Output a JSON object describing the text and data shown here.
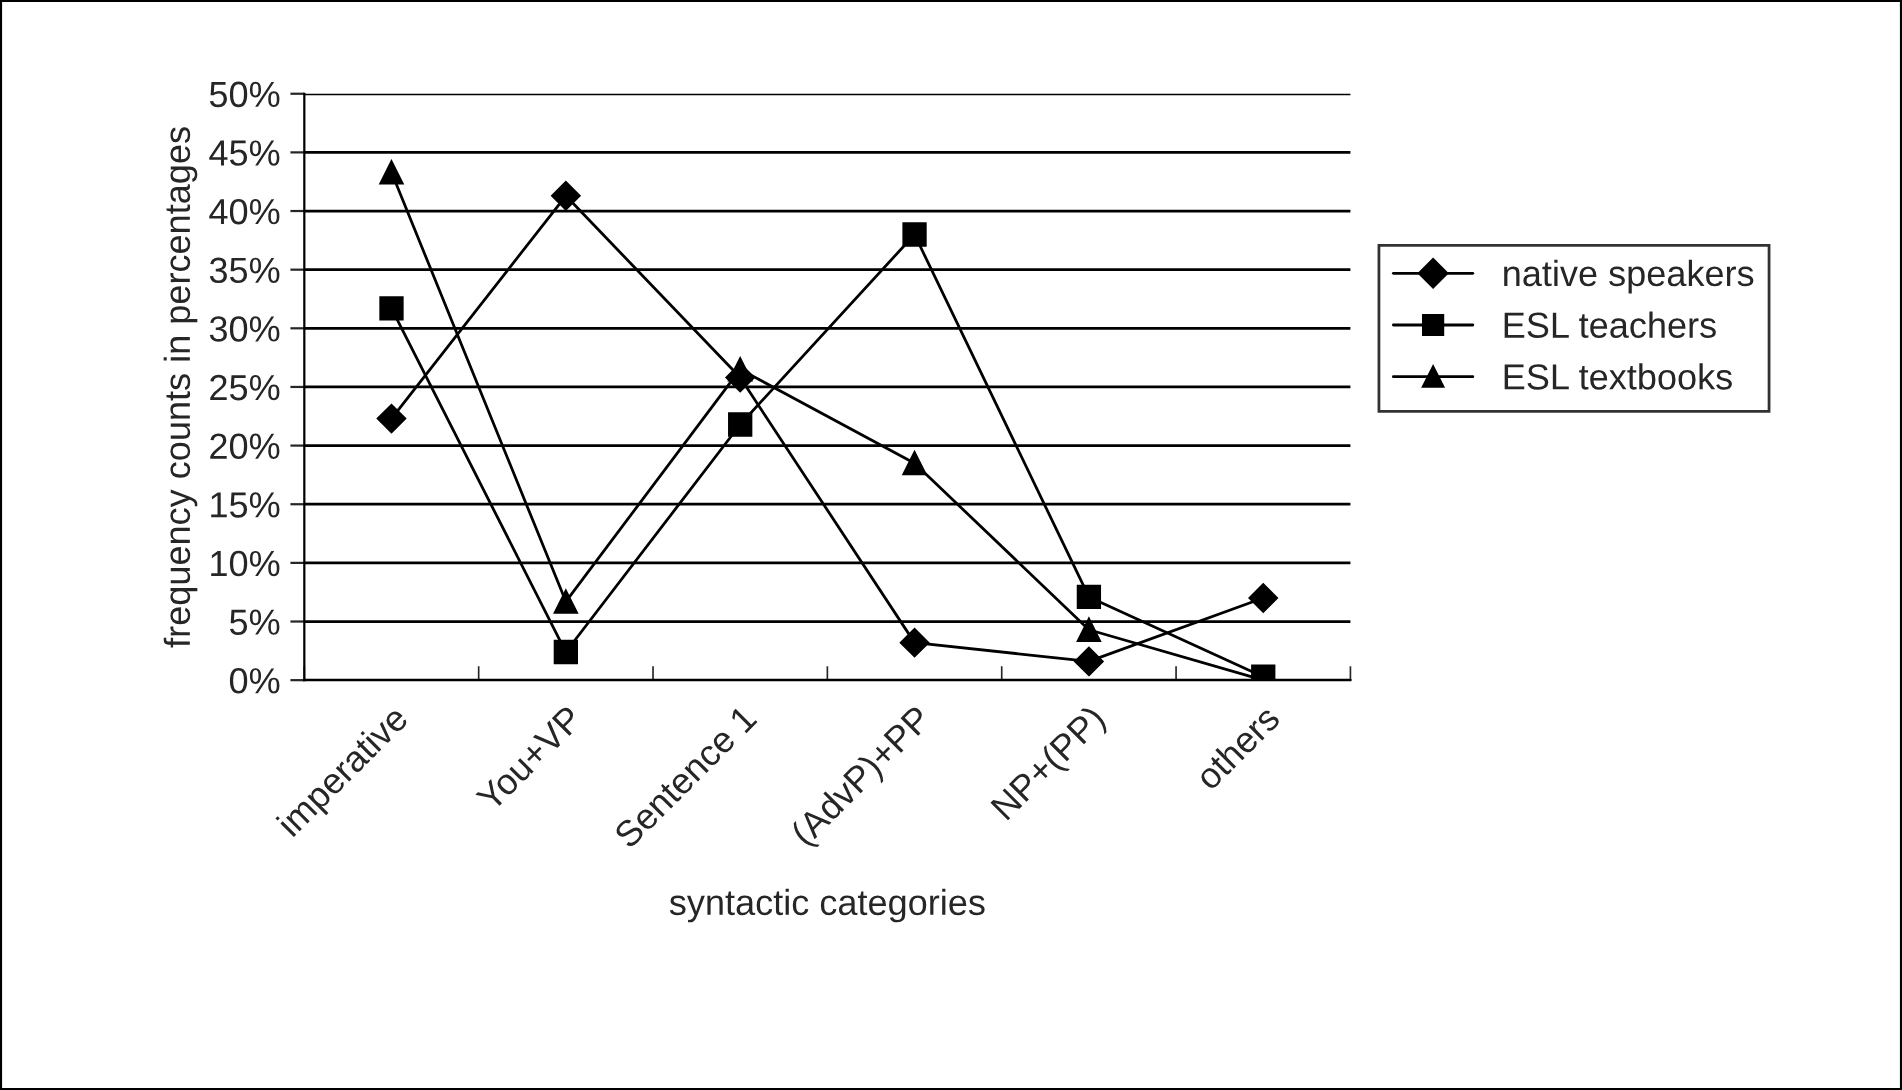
{
  "chart_data": {
    "type": "line",
    "xlabel": "syntactic categories",
    "ylabel": "frequency counts in percentages",
    "categories": [
      "imperative",
      "You+VP",
      "Sentence 1",
      "(AdvP)+PP",
      "NP+(PP)",
      "others"
    ],
    "series": [
      {
        "name": "native speakers",
        "color": "#000000",
        "marker": "diamond",
        "values": [
          22.3,
          41.3,
          25.8,
          3.2,
          1.6,
          7.0
        ]
      },
      {
        "name": "ESL teachers",
        "color": "#000000",
        "marker": "square",
        "values": [
          31.7,
          2.4,
          21.8,
          38.0,
          7.1,
          0.3
        ]
      },
      {
        "name": "ESL textbooks",
        "color": "#000000",
        "marker": "triangle",
        "values": [
          43.3,
          6.7,
          26.5,
          18.5,
          4.3,
          0.0
        ]
      }
    ],
    "ylim": [
      0,
      50
    ],
    "yticks": [
      {
        "value": 0,
        "label": "0%"
      },
      {
        "value": 5,
        "label": "5%"
      },
      {
        "value": 10,
        "label": "10%"
      },
      {
        "value": 15,
        "label": "15%"
      },
      {
        "value": 20,
        "label": "20%"
      },
      {
        "value": 25,
        "label": "25%"
      },
      {
        "value": 30,
        "label": "30%"
      },
      {
        "value": 35,
        "label": "35%"
      },
      {
        "value": 40,
        "label": "40%"
      },
      {
        "value": 45,
        "label": "45%"
      },
      {
        "value": 50,
        "label": "50%"
      }
    ],
    "grid": "y",
    "legend": "right",
    "line_style": "solid"
  }
}
